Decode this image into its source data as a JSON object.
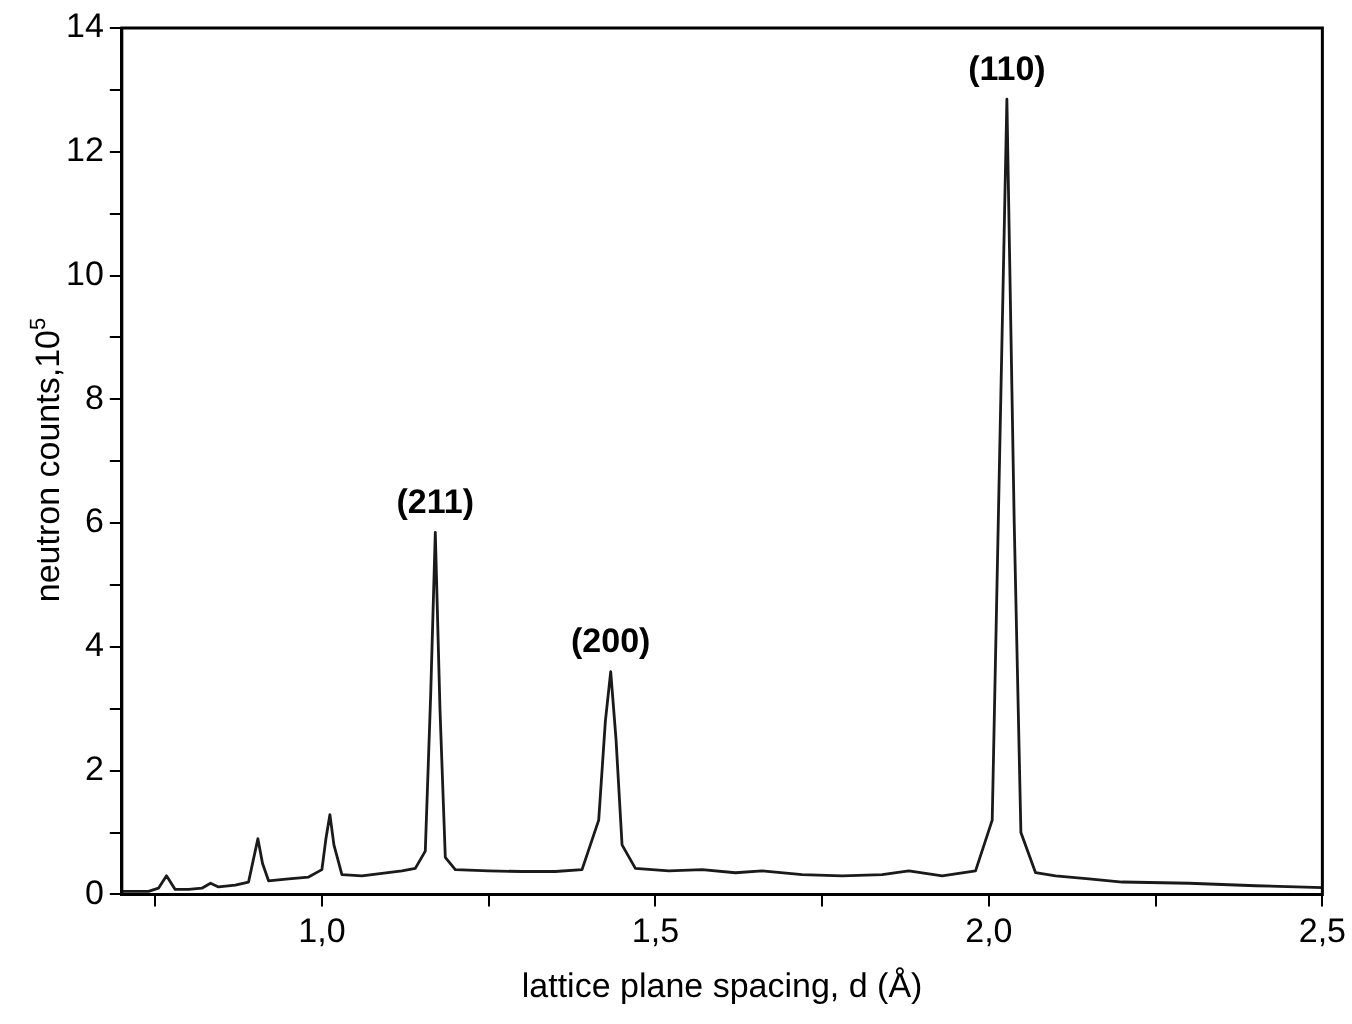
{
  "chart_data": {
    "type": "line",
    "xlabel": "lattice plane spacing, d (Å)",
    "ylabel": "neutron counts,10$^{5}$",
    "x": [
      0.7,
      0.74,
      0.755,
      0.767,
      0.78,
      0.8,
      0.82,
      0.833,
      0.845,
      0.87,
      0.89,
      0.897,
      0.904,
      0.911,
      0.92,
      0.95,
      0.98,
      1.0,
      1.006,
      1.012,
      1.018,
      1.03,
      1.06,
      1.09,
      1.12,
      1.14,
      1.155,
      1.163,
      1.17,
      1.177,
      1.185,
      1.2,
      1.25,
      1.3,
      1.35,
      1.39,
      1.415,
      1.425,
      1.433,
      1.441,
      1.45,
      1.47,
      1.52,
      1.57,
      1.62,
      1.66,
      1.72,
      1.78,
      1.84,
      1.88,
      1.93,
      1.98,
      2.005,
      2.015,
      2.027,
      2.038,
      2.048,
      2.07,
      2.1,
      2.15,
      2.2,
      2.3,
      2.4,
      2.5
    ],
    "series": [
      {
        "color": "#1a1a1a",
        "values": [
          0.05,
          0.05,
          0.1,
          0.3,
          0.08,
          0.08,
          0.1,
          0.18,
          0.12,
          0.15,
          0.2,
          0.55,
          0.9,
          0.5,
          0.22,
          0.25,
          0.28,
          0.4,
          0.9,
          1.29,
          0.8,
          0.32,
          0.3,
          0.34,
          0.38,
          0.42,
          0.7,
          3.2,
          5.85,
          3.0,
          0.6,
          0.4,
          0.38,
          0.37,
          0.37,
          0.4,
          1.2,
          2.8,
          3.6,
          2.5,
          0.8,
          0.42,
          0.38,
          0.4,
          0.35,
          0.38,
          0.32,
          0.3,
          0.32,
          0.38,
          0.3,
          0.38,
          1.2,
          6.5,
          12.85,
          6.0,
          1.0,
          0.35,
          0.3,
          0.25,
          0.2,
          0.18,
          0.14,
          0.11
        ]
      }
    ],
    "xlim": [
      0.7,
      2.5
    ],
    "ylim": [
      0,
      14
    ],
    "xticks": [
      {
        "value": 0.75,
        "label": null
      },
      {
        "value": 1,
        "label": "1,0"
      },
      {
        "value": 1.25,
        "label": null
      },
      {
        "value": 1.5,
        "label": "1,5"
      },
      {
        "value": 1.75,
        "label": null
      },
      {
        "value": 2,
        "label": "2,0"
      },
      {
        "value": 2.25,
        "label": null
      },
      {
        "value": 2.5,
        "label": "2,5"
      }
    ],
    "yticks": [
      0,
      {
        "value": 1,
        "label": null
      },
      2,
      {
        "value": 3,
        "label": null
      },
      4,
      {
        "value": 5,
        "label": null
      },
      6,
      {
        "value": 7,
        "label": null
      },
      8,
      {
        "value": 9,
        "label": null
      },
      10,
      {
        "value": 11,
        "label": null
      },
      12,
      {
        "value": 13,
        "label": null
      },
      14
    ],
    "annotations": [
      {
        "text": "(211)",
        "x": 1.17,
        "y": 5.85
      },
      {
        "text": "(200)",
        "x": 1.433,
        "y": 3.6
      },
      {
        "text": "(110)",
        "x": 2.027,
        "y": 12.85
      }
    ],
    "grid": false,
    "legend": false,
    "marker": "none",
    "line_style": "solid"
  }
}
